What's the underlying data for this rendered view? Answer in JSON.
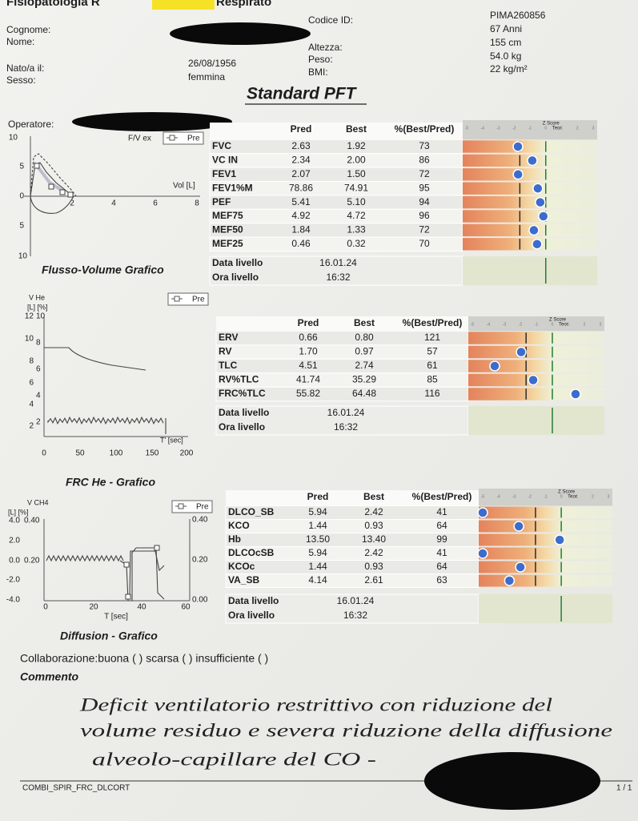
{
  "header": {
    "org_left": "Fisiopatologia R",
    "org_right": "Respirato",
    "title": "Standard PFT"
  },
  "patient": {
    "labels_left": [
      "Cognome:",
      "Nome:",
      "Nato/a il:",
      "Sesso:"
    ],
    "birth_date": "26/08/1956",
    "sex": "femmina",
    "labels_mid": [
      "Codice ID:",
      "Altezza:",
      "Peso:",
      "BMI:"
    ],
    "values_right": [
      "PIMA260856",
      "67 Anni",
      "155 cm",
      "54.0 kg",
      "22 kg/m²"
    ],
    "operator_label": "Operatore:"
  },
  "tables": [
    {
      "columns": [
        "Pred",
        "Best",
        "%(Best/Pred)"
      ],
      "z_title": "Z Score",
      "z_ref": "Teor",
      "zlim": [
        -5,
        3
      ],
      "zticks": [
        -5,
        -4,
        -3,
        -2,
        -1,
        0,
        1,
        2,
        3
      ],
      "rows": [
        [
          "FVC",
          "2.63",
          "1.92",
          "73"
        ],
        [
          "VC IN",
          "2.34",
          "2.00",
          "86"
        ],
        [
          "FEV1",
          "2.07",
          "1.50",
          "72"
        ],
        [
          "FEV1%M",
          "78.86",
          "74.91",
          "95"
        ],
        [
          "PEF",
          "5.41",
          "5.10",
          "94"
        ],
        [
          "MEF75",
          "4.92",
          "4.72",
          "96"
        ],
        [
          "MEF50",
          "1.84",
          "1.33",
          "72"
        ],
        [
          "MEF25",
          "0.46",
          "0.32",
          "70"
        ]
      ],
      "z": [
        -1.76,
        -0.85,
        -1.75,
        -0.5,
        -0.35,
        -0.15,
        -0.75,
        -0.55
      ],
      "level": [
        [
          "Data livello",
          "16.01.24"
        ],
        [
          "Ora livello",
          "16:32"
        ]
      ]
    },
    {
      "columns": [
        "Pred",
        "Best",
        "%(Best/Pred)"
      ],
      "z_title": "Z Score",
      "z_ref": "Teor",
      "zlim": [
        -5,
        3
      ],
      "zticks": [
        -5,
        -4,
        -3,
        -2,
        -1,
        0,
        1,
        2,
        3
      ],
      "rows": [
        [
          "ERV",
          "0.66",
          "0.80",
          "121"
        ],
        [
          "RV",
          "1.70",
          "0.97",
          "57"
        ],
        [
          "TLC",
          "4.51",
          "2.74",
          "61"
        ],
        [
          "RV%TLC",
          "41.74",
          "35.29",
          "85"
        ],
        [
          "FRC%TLC",
          "55.82",
          "64.48",
          "116"
        ]
      ],
      "z": [
        null,
        -1.95,
        -3.6,
        -1.2,
        1.45
      ],
      "level": [
        [
          "Data livello",
          "16.01.24"
        ],
        [
          "Ora livello",
          "16:32"
        ]
      ]
    },
    {
      "columns": [
        "Pred",
        "Best",
        "%(Best/Pred)"
      ],
      "z_title": "Z Score",
      "z_ref": "Teor",
      "zlim": [
        -5,
        3
      ],
      "zticks": [
        -5,
        -4,
        -3,
        -2,
        -1,
        0,
        1,
        2,
        3
      ],
      "rows": [
        [
          "DLCO_SB",
          "5.94",
          "2.42",
          "41"
        ],
        [
          "KCO",
          "1.44",
          "0.93",
          "64"
        ],
        [
          "Hb",
          "13.50",
          "13.40",
          "99"
        ],
        [
          "DLCOcSB",
          "5.94",
          "2.42",
          "41"
        ],
        [
          "KCOc",
          "1.44",
          "0.93",
          "64"
        ],
        [
          "VA_SB",
          "4.14",
          "2.61",
          "63"
        ]
      ],
      "z": [
        -5.0,
        -2.7,
        -0.1,
        -5.0,
        -2.6,
        -3.3
      ],
      "level": [
        [
          "Data livello",
          "16.01.24"
        ],
        [
          "Ora livello",
          "16:32"
        ]
      ]
    }
  ],
  "graphs": [
    {
      "caption": "Flusso-Volume Grafico",
      "title": "F/V ex",
      "legend": "Pre",
      "x_label": "Vol [L]",
      "yticks": [
        "10",
        "5",
        "0",
        "5",
        "10"
      ],
      "xticks": [
        "2",
        "4",
        "6",
        "8"
      ]
    },
    {
      "caption": "FRC He - Grafico",
      "title": "V He",
      "units": "[L] [%]",
      "legend": "Pre",
      "x_label": "T' [sec]",
      "yticks": [
        "12",
        "10",
        "8",
        "6",
        "4",
        "2"
      ],
      "y2ticks": [
        "10",
        "8",
        "6",
        "4",
        "2"
      ],
      "xticks": [
        "0",
        "50",
        "100",
        "150",
        "200"
      ]
    },
    {
      "caption": "Diffusion - Grafico",
      "title": "V CH4",
      "units": "[L] [%]",
      "legend": "Pre",
      "x_label": "T [sec]",
      "yticks": [
        "4.0",
        "2.0",
        "0.0",
        "-2.0",
        "-4.0"
      ],
      "y2ticks": [
        "0.40",
        "0.20"
      ],
      "y3ticks": [
        "0.40",
        "0.20",
        "0.00"
      ],
      "xticks": [
        "0",
        "20",
        "40",
        "60"
      ]
    }
  ],
  "footer": {
    "collaboration": "Collaborazione:buona (   ) scarsa (   ) insufficiente (   )",
    "comment_label": "Commento",
    "comment_lines": [
      "Deficit ventilatorio restrittivo con riduzione del",
      "volume residuo e severa riduzione della diffusione",
      "alveolo-capillare del CO -"
    ],
    "form_id": "COMBI_SPIR_FRC_DLCORT",
    "page": "1 / 1"
  }
}
